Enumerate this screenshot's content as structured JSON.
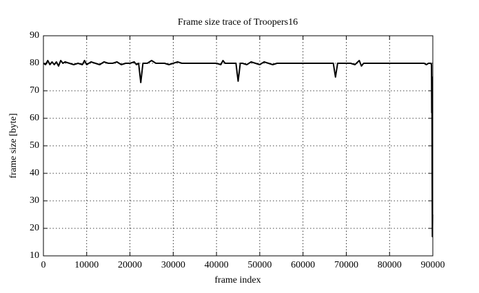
{
  "chart_data": {
    "type": "line",
    "title": "Frame size trace of Troopers16",
    "x_label": "frame index",
    "y_label": "frame size [byte]",
    "x": [
      0,
      500,
      1000,
      1500,
      2000,
      2500,
      3000,
      3500,
      4000,
      4500,
      5000,
      6000,
      7000,
      8000,
      9000,
      9500,
      10000,
      11000,
      12000,
      13000,
      14000,
      15000,
      16000,
      17000,
      18000,
      19000,
      20000,
      21000,
      21500,
      22000,
      22500,
      23000,
      24000,
      25000,
      26000,
      27000,
      28000,
      29000,
      30000,
      31000,
      32000,
      33000,
      34000,
      35000,
      36000,
      37000,
      38000,
      39000,
      40000,
      41000,
      41500,
      42000,
      43000,
      44000,
      44500,
      45000,
      45500,
      46000,
      47000,
      48000,
      49000,
      50000,
      51000,
      52000,
      53000,
      54000,
      55000,
      56000,
      57000,
      58000,
      59000,
      60000,
      61000,
      62000,
      63000,
      64000,
      65000,
      66000,
      67000,
      67500,
      68000,
      69000,
      70000,
      71000,
      72000,
      73000,
      73500,
      74000,
      75000,
      76000,
      77000,
      78000,
      79000,
      80000,
      81000,
      82000,
      83000,
      84000,
      85000,
      86000,
      87000,
      88000,
      88500,
      89000,
      89500,
      89700,
      89750,
      89800,
      89850,
      89900,
      89950
    ],
    "values": [
      80,
      79.5,
      81,
      79.5,
      80.5,
      79.5,
      80.5,
      79,
      81,
      80,
      80.5,
      80,
      79.5,
      80,
      79.5,
      81,
      79.5,
      80.5,
      80,
      79.5,
      80.5,
      80,
      80,
      80.5,
      79.5,
      80,
      80,
      80.5,
      79.5,
      80,
      73,
      80,
      80,
      81,
      80,
      80,
      80,
      79.5,
      80,
      80.5,
      80,
      80,
      80,
      80,
      80,
      80,
      80,
      80,
      80,
      79.5,
      81,
      80,
      80,
      80,
      80,
      73.5,
      80,
      80,
      79.5,
      80.5,
      80,
      79.5,
      80.5,
      80,
      79.5,
      80,
      80,
      80,
      80,
      80,
      80,
      80,
      80,
      80,
      80,
      80,
      80,
      80,
      80,
      75,
      80,
      80,
      80,
      80,
      79.5,
      81,
      79,
      80,
      80,
      80,
      80,
      80,
      80,
      80,
      80,
      80,
      80,
      80,
      80,
      80,
      80,
      80,
      79.5,
      80,
      80,
      79.5,
      62,
      75,
      37,
      17,
      25
    ],
    "color": "#000000",
    "xlim": [
      0,
      90000
    ],
    "xticks": [
      0,
      10000,
      20000,
      30000,
      40000,
      50000,
      60000,
      70000,
      80000,
      90000
    ],
    "ylim": [
      10,
      90
    ],
    "yticks": [
      10,
      20,
      30,
      40,
      50,
      60,
      70,
      80,
      90
    ],
    "grid": true
  }
}
